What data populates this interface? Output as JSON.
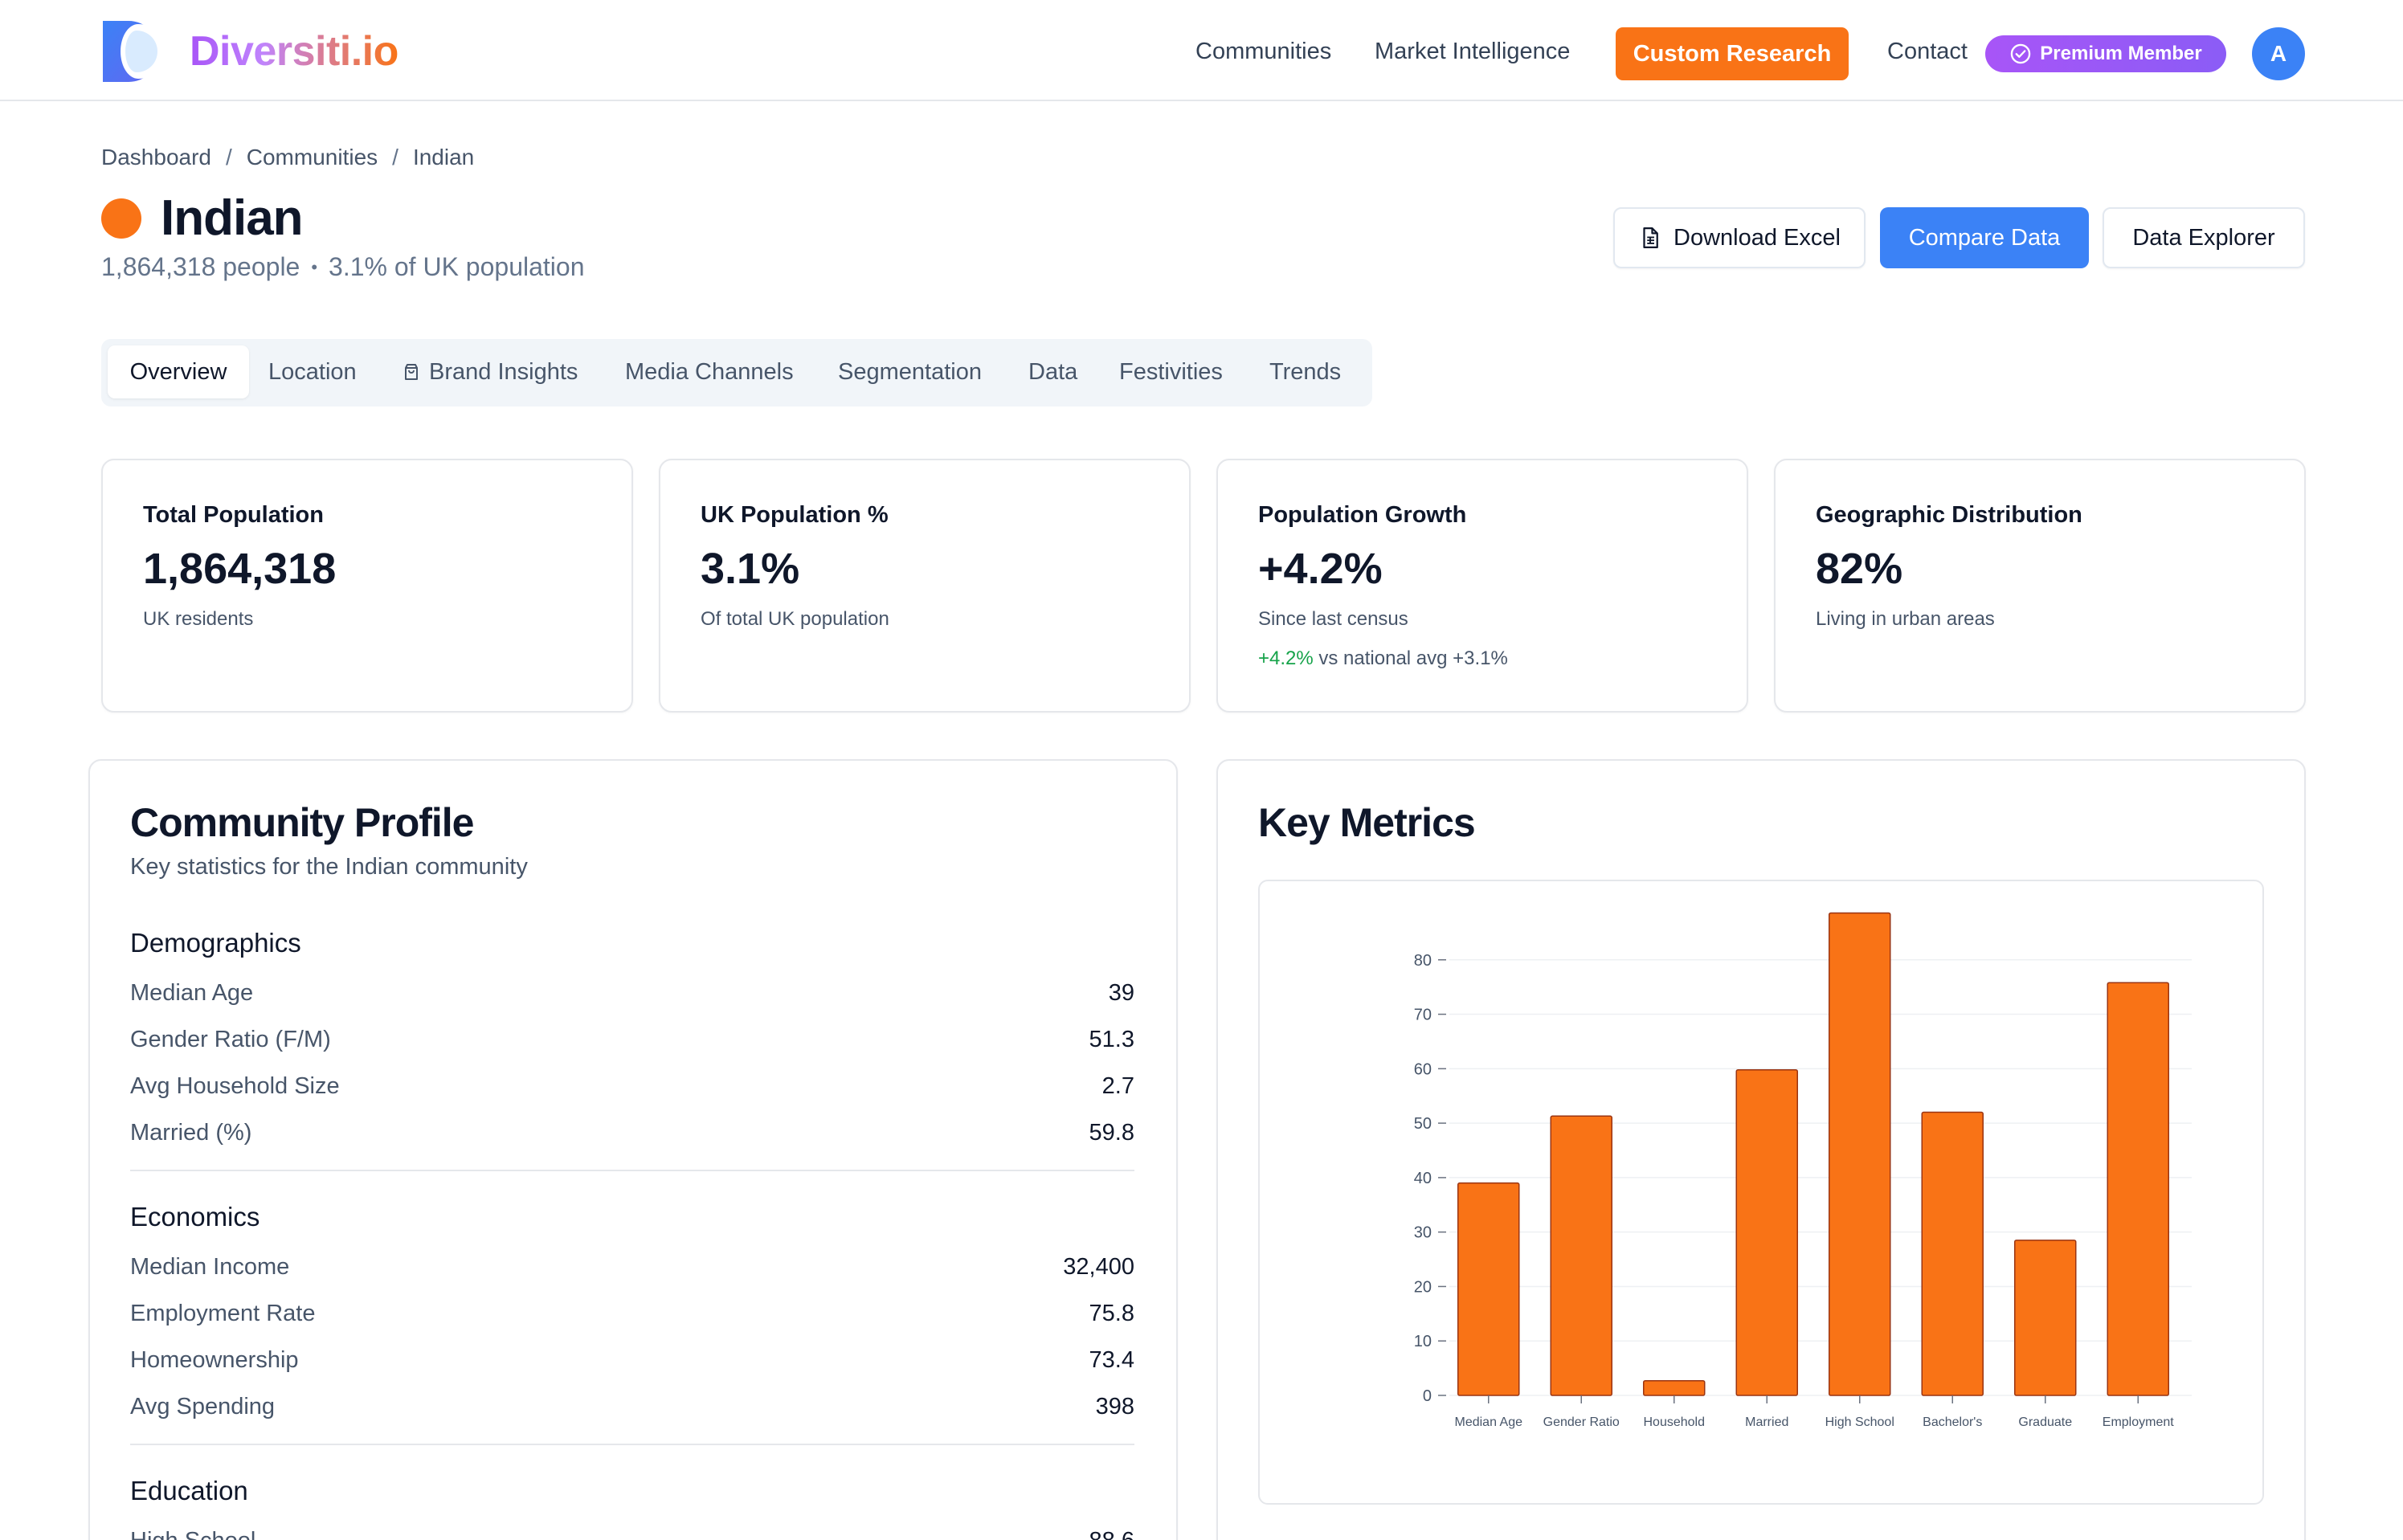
{
  "brand": {
    "name": "Diversiti.io"
  },
  "nav": {
    "links": [
      "Communities",
      "Market Intelligence"
    ],
    "cta": "Custom Research",
    "contact": "Contact",
    "premium": "Premium Member",
    "avatar": "A"
  },
  "breadcrumb": [
    "Dashboard",
    "Communities",
    "Indian"
  ],
  "page": {
    "title": "Indian",
    "people": "1,864,318 people",
    "share": "3.1% of UK population",
    "accent": "#f97316"
  },
  "actions": {
    "download": "Download Excel",
    "compare": "Compare Data",
    "explorer": "Data Explorer"
  },
  "tabs": [
    "Overview",
    "Location",
    "Brand Insights",
    "Media Channels",
    "Segmentation",
    "Data",
    "Festivities",
    "Trends"
  ],
  "stats": [
    {
      "label": "Total Population",
      "value": "1,864,318",
      "desc": "UK residents"
    },
    {
      "label": "UK Population %",
      "value": "3.1%",
      "desc": "Of total UK population"
    },
    {
      "label": "Population Growth",
      "value": "+4.2%",
      "desc": "Since last census",
      "extra_up": "+4.2%",
      "extra_rest": "vs national avg +3.1%"
    },
    {
      "label": "Geographic Distribution",
      "value": "82%",
      "desc": "Living in urban areas"
    }
  ],
  "profile": {
    "title": "Community Profile",
    "subtitle": "Key statistics for the Indian community",
    "sections": [
      {
        "name": "Demographics",
        "rows": [
          {
            "k": "Median Age",
            "v": "39"
          },
          {
            "k": "Gender Ratio (F/M)",
            "v": "51.3"
          },
          {
            "k": "Avg Household Size",
            "v": "2.7"
          },
          {
            "k": "Married (%)",
            "v": "59.8"
          }
        ]
      },
      {
        "name": "Economics",
        "rows": [
          {
            "k": "Median Income",
            "v": "32,400"
          },
          {
            "k": "Employment Rate",
            "v": "75.8"
          },
          {
            "k": "Homeownership",
            "v": "73.4"
          },
          {
            "k": "Avg Spending",
            "v": "398"
          }
        ]
      },
      {
        "name": "Education",
        "rows": [
          {
            "k": "High School",
            "v": "88.6"
          }
        ]
      }
    ]
  },
  "metrics": {
    "title": "Key Metrics"
  },
  "chart_data": {
    "type": "bar",
    "categories": [
      "Median Age",
      "Gender Ratio",
      "Household",
      "Married",
      "High School",
      "Bachelor's",
      "Graduate",
      "Employment"
    ],
    "values": [
      39,
      51.3,
      2.7,
      59.8,
      88.6,
      52,
      28.5,
      75.8
    ],
    "ylim": [
      0,
      90
    ],
    "yticks": [
      0,
      10,
      20,
      30,
      40,
      50,
      60,
      70,
      80
    ],
    "bar_color": "#f97316",
    "bar_stroke": "#9a3412",
    "grid": true
  }
}
